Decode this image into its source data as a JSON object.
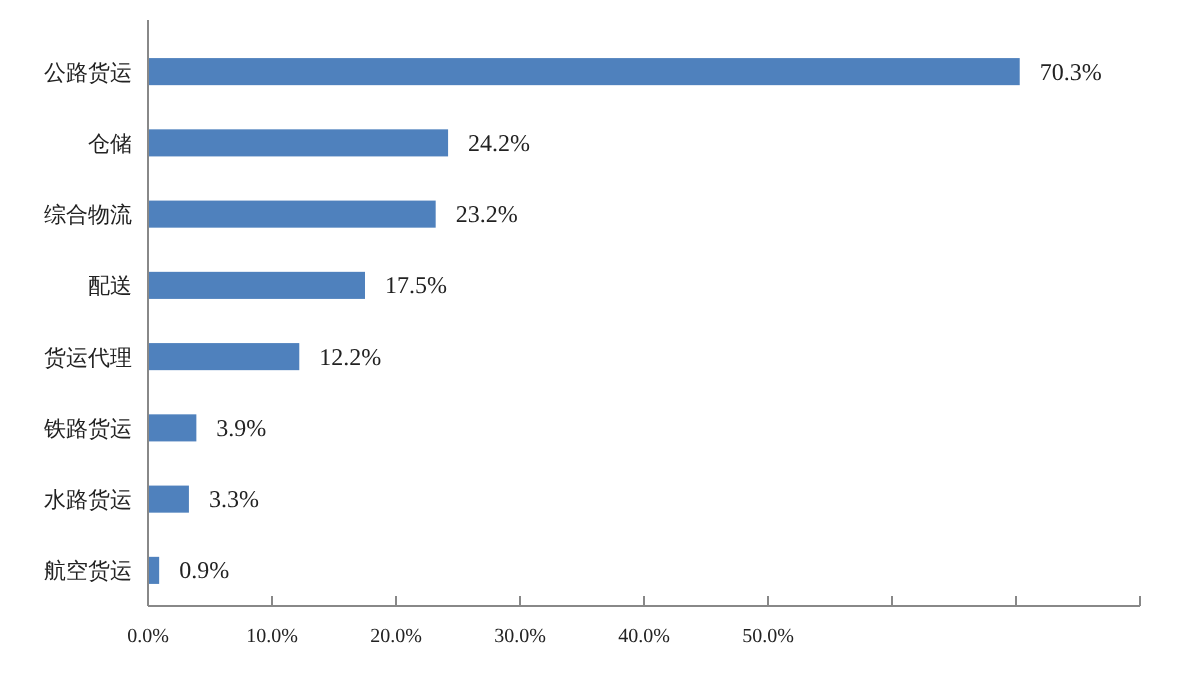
{
  "chart_data": {
    "type": "bar",
    "orientation": "horizontal",
    "categories": [
      "公路货运",
      "仓储",
      "综合物流",
      "配送",
      "货运代理",
      "铁路货运",
      "水路货运",
      "航空货运"
    ],
    "values": [
      70.3,
      24.2,
      23.2,
      17.5,
      12.2,
      3.9,
      3.3,
      0.9
    ],
    "value_labels": [
      "70.3%",
      "24.2%",
      "23.2%",
      "17.5%",
      "12.2%",
      "3.9%",
      "3.3%",
      "0.9%"
    ],
    "color": "#4f81bd",
    "xlim": [
      0,
      80
    ],
    "xticks": [
      {
        "value": 0,
        "label": "0.0%"
      },
      {
        "value": 10,
        "label": "10.0%"
      },
      {
        "value": 20,
        "label": "20.0%"
      },
      {
        "value": 30,
        "label": "30.0%"
      },
      {
        "value": 40,
        "label": "40.0%"
      },
      {
        "value": 50,
        "label": "50.0%"
      },
      {
        "value": 60,
        "label": null
      },
      {
        "value": 70,
        "label": null
      },
      {
        "value": 80,
        "label": null
      }
    ],
    "grid": false
  }
}
